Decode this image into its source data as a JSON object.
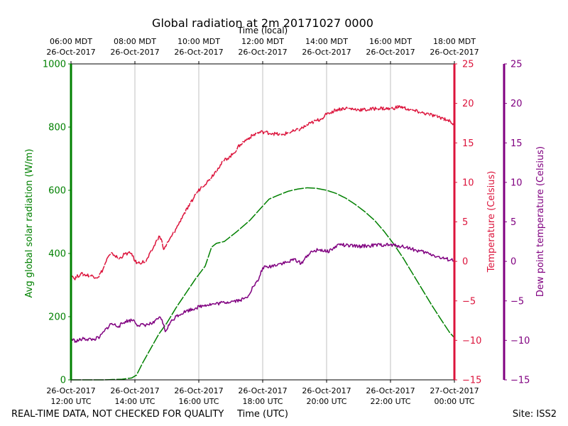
{
  "chart_data": {
    "type": "line",
    "title": "Global radiation at 2m 20171027 0000",
    "top_axis_label": "Time (local)",
    "xlabel": "Time (UTC)",
    "footer_left": "REAL-TIME DATA, NOT CHECKED FOR QUALITY",
    "footer_right": "Site: ISS2",
    "x_range_utc_hours": [
      12,
      24
    ],
    "bottom_ticks": [
      {
        "h": 12,
        "line1": "26-Oct-2017",
        "line2": "12:00 UTC"
      },
      {
        "h": 14,
        "line1": "26-Oct-2017",
        "line2": "14:00 UTC"
      },
      {
        "h": 16,
        "line1": "26-Oct-2017",
        "line2": "16:00 UTC"
      },
      {
        "h": 18,
        "line1": "26-Oct-2017",
        "line2": "18:00 UTC"
      },
      {
        "h": 20,
        "line1": "26-Oct-2017",
        "line2": "20:00 UTC"
      },
      {
        "h": 22,
        "line1": "26-Oct-2017",
        "line2": "22:00 UTC"
      },
      {
        "h": 24,
        "line1": "27-Oct-2017",
        "line2": "00:00 UTC"
      }
    ],
    "top_ticks": [
      {
        "h": 12,
        "line1": "06:00 MDT",
        "line2": "26-Oct-2017"
      },
      {
        "h": 14,
        "line1": "08:00 MDT",
        "line2": "26-Oct-2017"
      },
      {
        "h": 16,
        "line1": "10:00 MDT",
        "line2": "26-Oct-2017"
      },
      {
        "h": 18,
        "line1": "12:00 MDT",
        "line2": "26-Oct-2017"
      },
      {
        "h": 20,
        "line1": "14:00 MDT",
        "line2": "26-Oct-2017"
      },
      {
        "h": 22,
        "line1": "16:00 MDT",
        "line2": "26-Oct-2017"
      },
      {
        "h": 24,
        "line1": "18:00 MDT",
        "line2": "26-Oct-2017"
      }
    ],
    "axes": {
      "radiation": {
        "label": "Avg global solar radiation (W/m)",
        "ylim": [
          0,
          1000
        ],
        "ticks": [
          0,
          200,
          400,
          600,
          800,
          1000
        ],
        "color": "#008000"
      },
      "temperature": {
        "label": "Temperature (Celsius)",
        "ylim": [
          -15,
          25
        ],
        "ticks": [
          -15,
          -10,
          -5,
          0,
          5,
          10,
          15,
          20,
          25
        ],
        "color": "#dc143c"
      },
      "dewpoint": {
        "label": "Dew point temperature (Celsius)",
        "ylim": [
          -15,
          25
        ],
        "ticks": [
          -15,
          -10,
          -5,
          0,
          5,
          10,
          15,
          20,
          25
        ],
        "color": "#800080"
      }
    },
    "grid": "vertical",
    "series": [
      {
        "axis": "radiation",
        "color": "#008000",
        "points": [
          [
            12.0,
            0
          ],
          [
            13.0,
            0
          ],
          [
            13.6,
            2
          ],
          [
            13.9,
            6
          ],
          [
            14.05,
            15
          ],
          [
            14.25,
            55
          ],
          [
            14.5,
            100
          ],
          [
            14.75,
            145
          ],
          [
            15.0,
            180
          ],
          [
            15.3,
            230
          ],
          [
            15.6,
            275
          ],
          [
            15.9,
            320
          ],
          [
            16.2,
            360
          ],
          [
            16.4,
            420
          ],
          [
            16.55,
            432
          ],
          [
            16.8,
            438
          ],
          [
            17.2,
            470
          ],
          [
            17.6,
            505
          ],
          [
            18.0,
            550
          ],
          [
            18.2,
            572
          ],
          [
            18.5,
            585
          ],
          [
            18.8,
            597
          ],
          [
            19.1,
            604
          ],
          [
            19.4,
            608
          ],
          [
            19.7,
            606
          ],
          [
            20.0,
            600
          ],
          [
            20.3,
            590
          ],
          [
            20.6,
            575
          ],
          [
            20.9,
            555
          ],
          [
            21.2,
            532
          ],
          [
            21.5,
            505
          ],
          [
            21.8,
            470
          ],
          [
            22.1,
            430
          ],
          [
            22.4,
            385
          ],
          [
            22.7,
            335
          ],
          [
            23.0,
            285
          ],
          [
            23.3,
            235
          ],
          [
            23.6,
            188
          ],
          [
            23.85,
            150
          ],
          [
            24.0,
            133
          ]
        ]
      },
      {
        "axis": "temperature",
        "color": "#dc143c",
        "points": [
          [
            12.0,
            -1.5
          ],
          [
            12.1,
            -2.2
          ],
          [
            12.3,
            -1.6
          ],
          [
            12.6,
            -1.8
          ],
          [
            12.85,
            -2.0
          ],
          [
            13.0,
            -1.0
          ],
          [
            13.15,
            0.5
          ],
          [
            13.3,
            1.0
          ],
          [
            13.5,
            0.3
          ],
          [
            13.7,
            1.0
          ],
          [
            13.9,
            1.0
          ],
          [
            14.0,
            0.0
          ],
          [
            14.1,
            -0.2
          ],
          [
            14.35,
            0.0
          ],
          [
            14.55,
            1.5
          ],
          [
            14.75,
            3.2
          ],
          [
            14.85,
            2.5
          ],
          [
            14.9,
            1.5
          ],
          [
            15.05,
            2.5
          ],
          [
            15.3,
            4.2
          ],
          [
            15.5,
            5.8
          ],
          [
            15.7,
            7.0
          ],
          [
            15.9,
            8.5
          ],
          [
            16.1,
            9.5
          ],
          [
            16.3,
            10.2
          ],
          [
            16.6,
            11.8
          ],
          [
            16.8,
            12.8
          ],
          [
            17.05,
            13.5
          ],
          [
            17.3,
            14.8
          ],
          [
            17.55,
            15.6
          ],
          [
            17.8,
            16.2
          ],
          [
            18.0,
            16.4
          ],
          [
            18.3,
            16.2
          ],
          [
            18.6,
            16.0
          ],
          [
            18.8,
            16.3
          ],
          [
            19.0,
            16.5
          ],
          [
            19.2,
            16.8
          ],
          [
            19.5,
            17.5
          ],
          [
            19.8,
            18.0
          ],
          [
            20.0,
            18.6
          ],
          [
            20.3,
            19.2
          ],
          [
            20.6,
            19.4
          ],
          [
            21.0,
            19.2
          ],
          [
            21.3,
            19.2
          ],
          [
            21.6,
            19.4
          ],
          [
            22.0,
            19.3
          ],
          [
            22.3,
            19.6
          ],
          [
            22.6,
            19.2
          ],
          [
            22.9,
            18.9
          ],
          [
            23.2,
            18.6
          ],
          [
            23.5,
            18.3
          ],
          [
            23.8,
            17.9
          ],
          [
            24.0,
            17.3
          ]
        ]
      },
      {
        "axis": "dewpoint",
        "color": "#800080",
        "points": [
          [
            12.0,
            -9.8
          ],
          [
            12.15,
            -10.1
          ],
          [
            12.4,
            -9.8
          ],
          [
            12.7,
            -9.9
          ],
          [
            12.9,
            -9.6
          ],
          [
            13.05,
            -8.8
          ],
          [
            13.25,
            -7.9
          ],
          [
            13.5,
            -8.2
          ],
          [
            13.7,
            -7.6
          ],
          [
            13.95,
            -7.4
          ],
          [
            14.1,
            -8.1
          ],
          [
            14.4,
            -8.0
          ],
          [
            14.6,
            -7.8
          ],
          [
            14.75,
            -7.1
          ],
          [
            14.85,
            -7.4
          ],
          [
            14.95,
            -8.9
          ],
          [
            15.1,
            -7.8
          ],
          [
            15.3,
            -6.9
          ],
          [
            15.6,
            -6.3
          ],
          [
            15.9,
            -5.9
          ],
          [
            16.2,
            -5.5
          ],
          [
            16.5,
            -5.4
          ],
          [
            16.8,
            -5.2
          ],
          [
            17.1,
            -5.0
          ],
          [
            17.3,
            -4.9
          ],
          [
            17.5,
            -4.6
          ],
          [
            17.7,
            -3.2
          ],
          [
            17.85,
            -2.5
          ],
          [
            18.0,
            -0.8
          ],
          [
            18.2,
            -0.7
          ],
          [
            18.5,
            -0.3
          ],
          [
            18.8,
            -0.1
          ],
          [
            19.0,
            0.3
          ],
          [
            19.2,
            -0.3
          ],
          [
            19.4,
            0.8
          ],
          [
            19.6,
            1.3
          ],
          [
            19.8,
            1.5
          ],
          [
            20.0,
            1.2
          ],
          [
            20.2,
            1.6
          ],
          [
            20.4,
            2.2
          ],
          [
            20.6,
            2.0
          ],
          [
            21.0,
            1.9
          ],
          [
            21.4,
            2.0
          ],
          [
            21.8,
            2.1
          ],
          [
            22.2,
            2.0
          ],
          [
            22.5,
            1.8
          ],
          [
            22.8,
            1.4
          ],
          [
            23.2,
            1.0
          ],
          [
            23.6,
            0.4
          ],
          [
            24.0,
            0.1
          ]
        ]
      }
    ]
  }
}
